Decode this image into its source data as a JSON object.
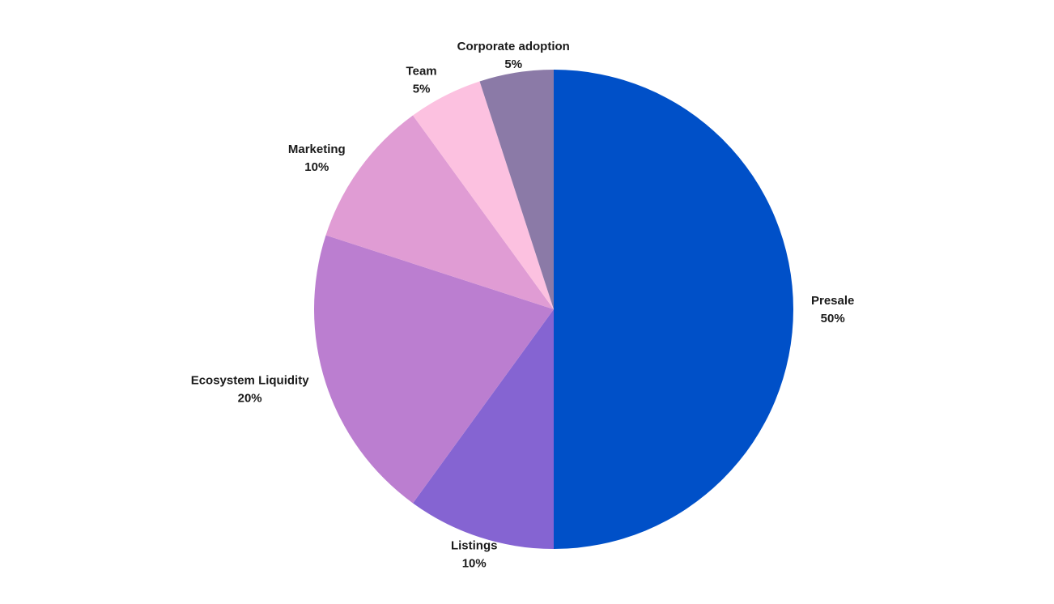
{
  "chart_data": {
    "type": "pie",
    "title": "",
    "start_angle": "12 o'clock",
    "direction": "clockwise",
    "legend": "none",
    "slices": [
      {
        "label": "Presale",
        "value": 50,
        "value_label": "50%",
        "color": "#0050c8"
      },
      {
        "label": "Listings",
        "value": 10,
        "value_label": "10%",
        "color": "#8564d2"
      },
      {
        "label": "Ecosystem Liquidity",
        "value": 20,
        "value_label": "20%",
        "color": "#bb7ed0"
      },
      {
        "label": "Marketing",
        "value": 10,
        "value_label": "10%",
        "color": "#e09cd4"
      },
      {
        "label": "Team",
        "value": 5,
        "value_label": "5%",
        "color": "#fcc1e0"
      },
      {
        "label": "Corporate adoption",
        "value": 5,
        "value_label": "5%",
        "color": "#8b7aa7"
      }
    ]
  }
}
